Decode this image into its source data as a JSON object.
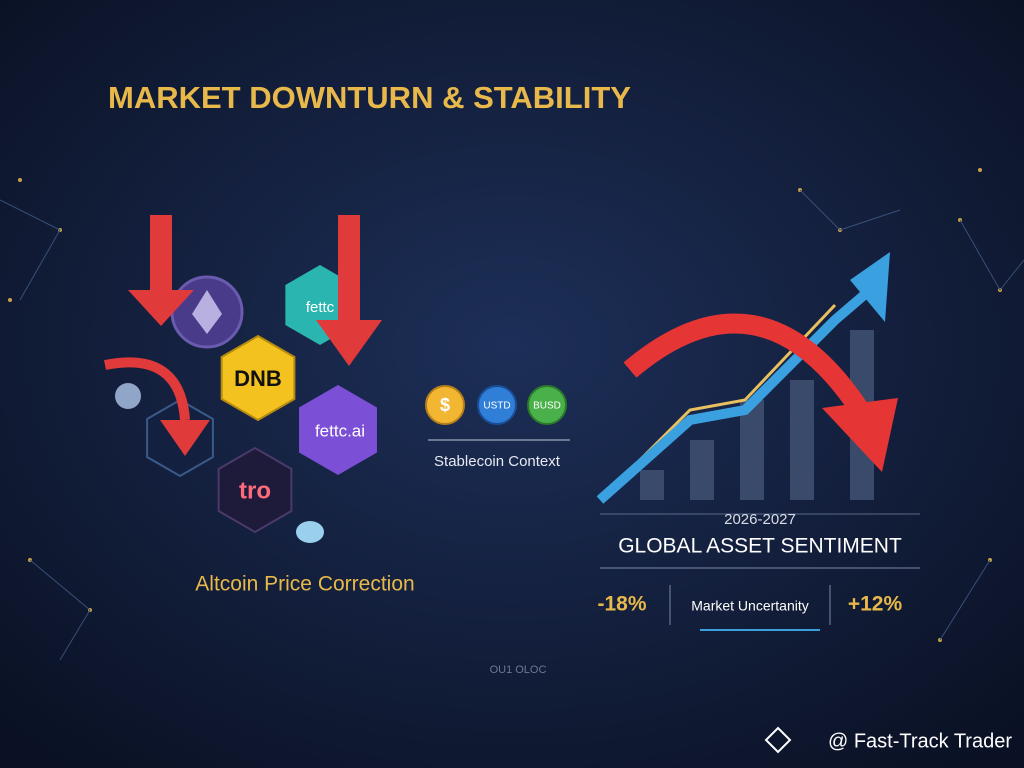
{
  "header": {
    "title": "MARKET DOWNTURN & STABILITY"
  },
  "altcoins": {
    "tokens": [
      "fettc",
      "DNB",
      "fettc.ai",
      "tro"
    ],
    "caption": "Altcoin Price Correction"
  },
  "stablecoins": {
    "coins": [
      "$",
      "USTD",
      "BUSD"
    ],
    "caption": "Stablecoin Context"
  },
  "sentiment": {
    "period": "2026-2027",
    "title": "GLOBAL ASSET SENTIMENT",
    "left": "-18%",
    "middle": "Market Uncertanity",
    "right": "+12%"
  },
  "footer": {
    "pager": "OU1 OLOC",
    "credit": "@ Fast-Track Trader"
  }
}
